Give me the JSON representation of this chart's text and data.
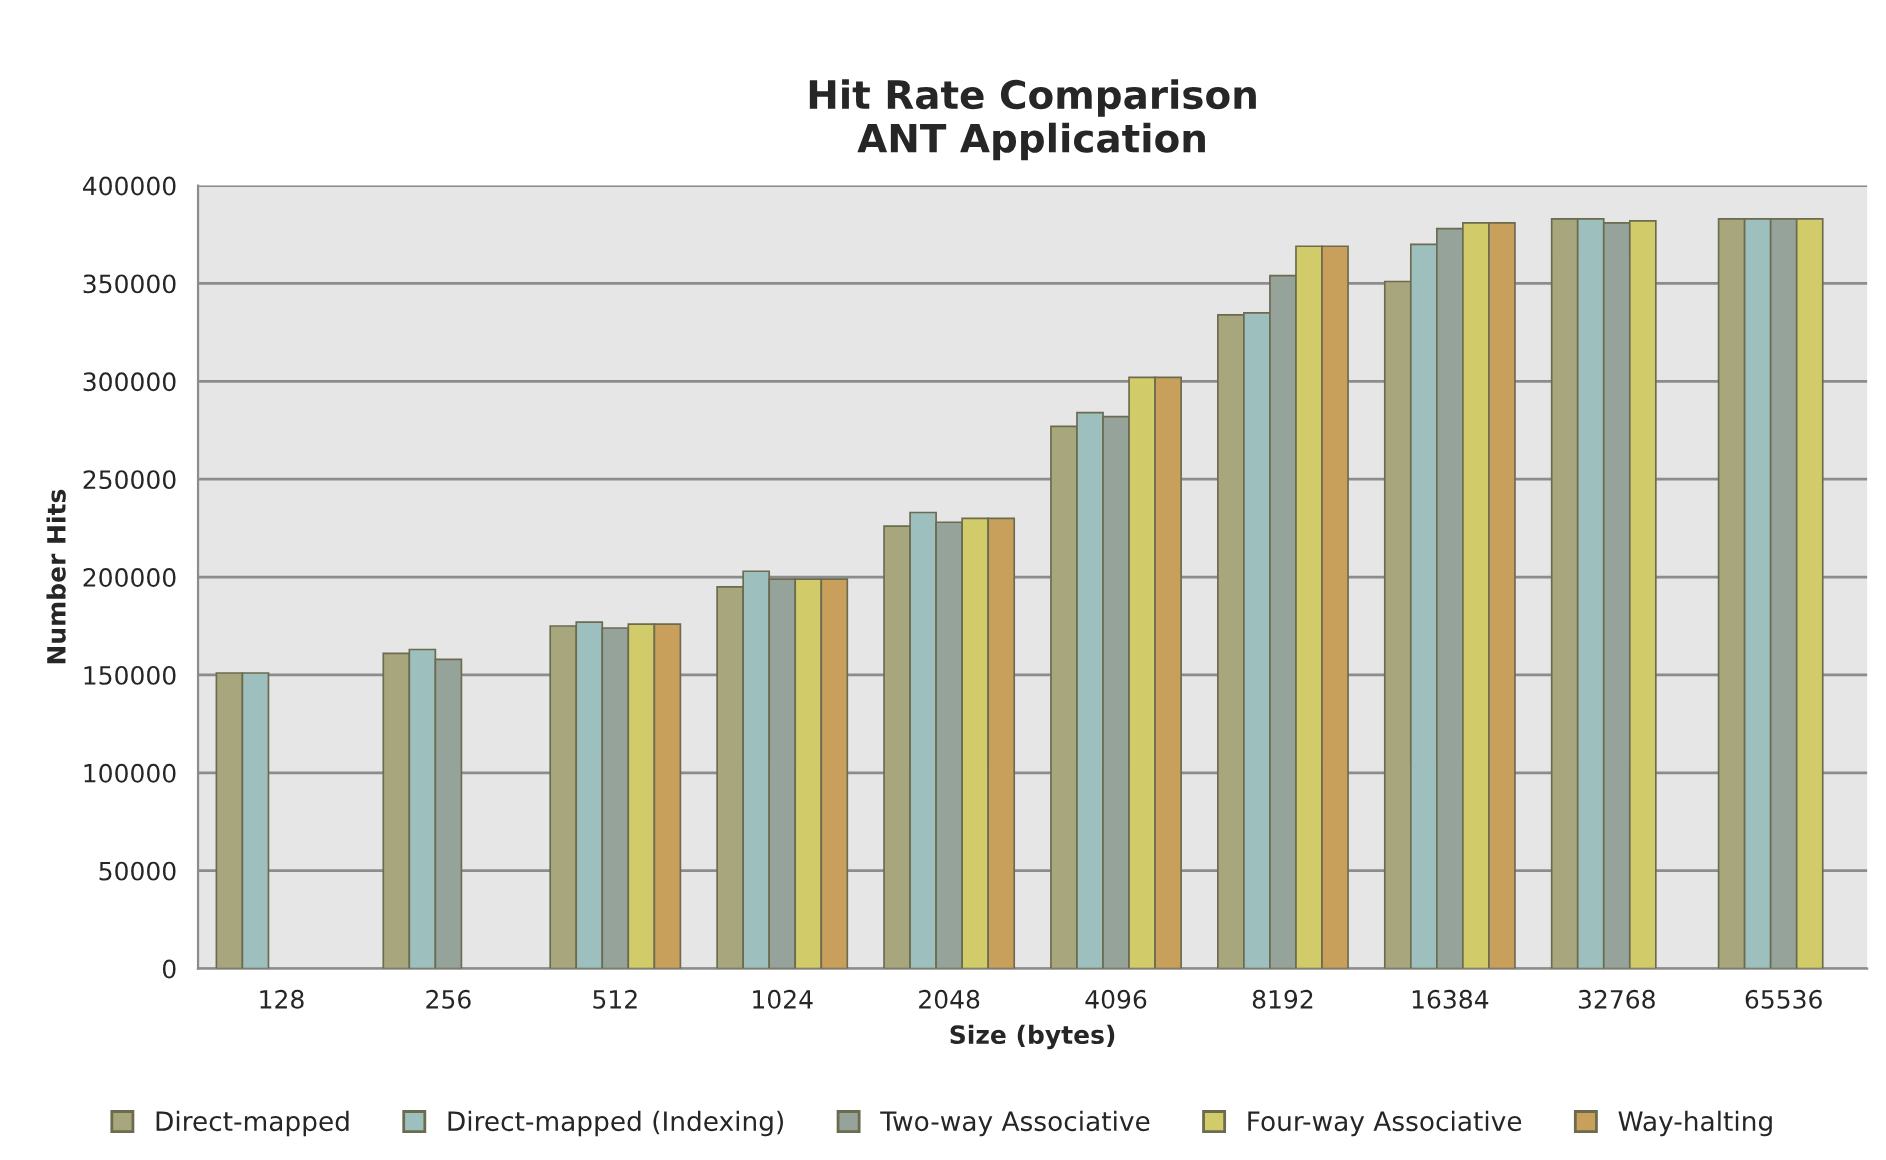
{
  "chart_data": {
    "type": "bar",
    "title": "Hit Rate Comparison\nANT Application",
    "xlabel": "Size (bytes)",
    "ylabel": "Number Hits",
    "categories": [
      "128",
      "256",
      "512",
      "1024",
      "2048",
      "4096",
      "8192",
      "16384",
      "32768",
      "65536"
    ],
    "series": [
      {
        "name": "Direct-mapped",
        "color": "#a8a67c",
        "values": [
          151000,
          161000,
          175000,
          195000,
          226000,
          277000,
          334000,
          351000,
          383000,
          383000
        ]
      },
      {
        "name": "Direct-mapped (Indexing)",
        "color": "#9dbfbe",
        "values": [
          151000,
          163000,
          177000,
          203000,
          233000,
          284000,
          335000,
          370000,
          383000,
          383000
        ]
      },
      {
        "name": "Two-way Associative",
        "color": "#95a39b",
        "values": [
          null,
          158000,
          174000,
          199000,
          228000,
          282000,
          354000,
          378000,
          381000,
          383000
        ]
      },
      {
        "name": "Four-way Associative",
        "color": "#d1cb6a",
        "values": [
          null,
          null,
          176000,
          199000,
          230000,
          302000,
          369000,
          381000,
          382000,
          383000
        ]
      },
      {
        "name": "Way-halting",
        "color": "#c99f5c",
        "values": [
          null,
          null,
          176000,
          199000,
          230000,
          302000,
          369000,
          381000,
          null,
          null
        ]
      }
    ],
    "ylim": [
      0,
      400000
    ],
    "yticks": [
      0,
      50000,
      100000,
      150000,
      200000,
      250000,
      300000,
      350000,
      400000
    ],
    "grid": "y",
    "legend": "bottom"
  }
}
